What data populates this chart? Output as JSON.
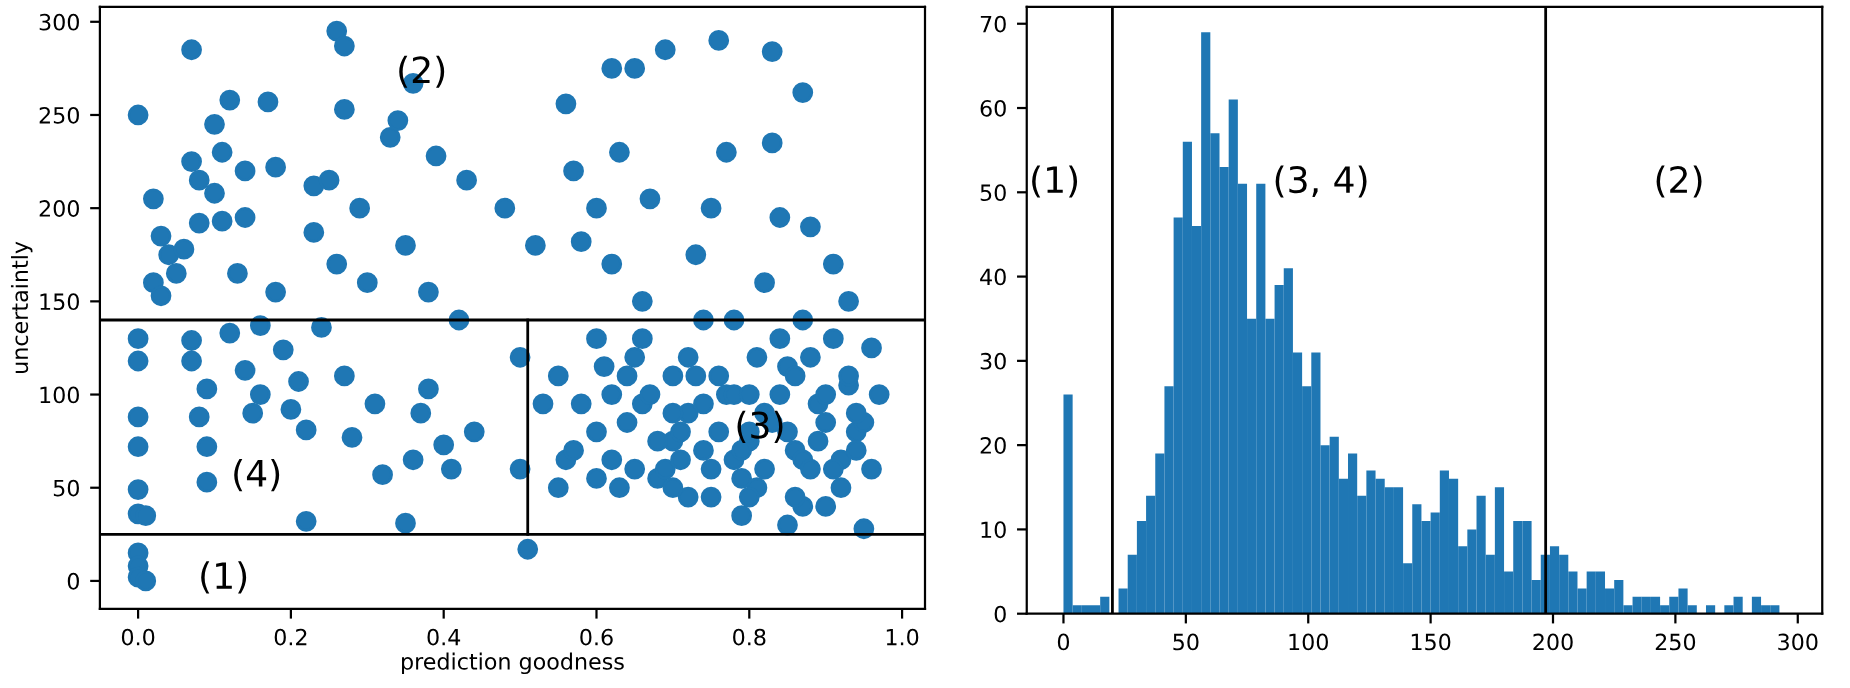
{
  "chart_data": [
    {
      "type": "scatter",
      "xlabel": "prediction goodness",
      "ylabel": "uncertaintly",
      "xlim": [
        -0.05,
        1.03
      ],
      "ylim": [
        -15,
        308
      ],
      "xticks": [
        {
          "value": 0,
          "label": "0.0"
        },
        {
          "value": 0.2,
          "label": "0.2"
        },
        {
          "value": 0.4,
          "label": "0.4"
        },
        {
          "value": 0.6,
          "label": "0.6"
        },
        {
          "value": 0.8,
          "label": "0.8"
        },
        {
          "value": 1,
          "label": "1.0"
        }
      ],
      "yticks": [
        0,
        50,
        100,
        150,
        200,
        250,
        300
      ],
      "grid": false,
      "legend": false,
      "series": [
        {
          "type": "scatter",
          "color": "#1f77b4",
          "marker": "circle",
          "x": [
            0.6,
            0.62,
            0.64,
            0.66,
            0.68,
            0.7,
            0.72,
            0.74,
            0.76,
            0.78,
            0.8,
            0.82,
            0.84,
            0.86,
            0.88,
            0.9,
            0.92,
            0.94,
            0.61,
            0.63,
            0.67,
            0.69,
            0.71,
            0.73,
            0.75,
            0.77,
            0.79,
            0.81,
            0.83,
            0.85,
            0.87,
            0.89,
            0.91,
            0.93,
            0.95,
            0.58,
            0.56,
            0.65,
            0.79,
            0.87,
            0,
            0,
            0,
            0,
            0,
            0,
            0,
            0.01,
            0,
            0,
            0,
            0.01,
            0.07,
            0.02,
            0.02,
            0.03,
            0.03,
            0.04,
            0.05,
            0.06,
            0.07,
            0.08,
            0.08,
            0.07,
            0.07,
            0.08,
            0.09,
            0.09,
            0.09,
            0.1,
            0.1,
            0.11,
            0.11,
            0.12,
            0.12,
            0.13,
            0.14,
            0.14,
            0.14,
            0.15,
            0.16,
            0.16,
            0.17,
            0.18,
            0.18,
            0.19,
            0.2,
            0.21,
            0.22,
            0.22,
            0.23,
            0.23,
            0.24,
            0.25,
            0.26,
            0.27,
            0.27,
            0.26,
            0.27,
            0.28,
            0.29,
            0.3,
            0.31,
            0.32,
            0.33,
            0.34,
            0.35,
            0.35,
            0.36,
            0.36,
            0.37,
            0.38,
            0.38,
            0.39,
            0.4,
            0.41,
            0.42,
            0.43,
            0.44,
            0.48,
            0.5,
            0.5,
            0.51,
            0.52,
            0.53,
            0.55,
            0.56,
            0.57,
            0.58,
            0.6,
            0.6,
            0.62,
            0.62,
            0.63,
            0.64,
            0.65,
            0.66,
            0.67,
            0.69,
            0.7,
            0.71,
            0.72,
            0.73,
            0.74,
            0.75,
            0.76,
            0.77,
            0.78,
            0.79,
            0.8,
            0.81,
            0.82,
            0.83,
            0.83,
            0.84,
            0.85,
            0.86,
            0.87,
            0.87,
            0.88,
            0.9,
            0.91,
            0.93,
            0.94,
            0.95,
            0.96,
            0.96,
            0.97,
            0.85,
            0.88,
            0.9,
            0.92,
            0.75,
            0.7,
            0.65,
            0.6,
            0.57,
            0.8,
            0.78,
            0.72,
            0.66,
            0.94,
            0.82,
            0.76,
            0.68,
            0.62,
            0.55,
            0.91,
            0.86,
            0.8,
            0.74,
            0.7,
            0.84,
            0.89,
            0.93
          ],
          "values": [
            55,
            65,
            85,
            95,
            55,
            75,
            90,
            70,
            110,
            65,
            75,
            90,
            100,
            70,
            120,
            85,
            65,
            80,
            115,
            50,
            100,
            60,
            80,
            110,
            45,
            100,
            70,
            50,
            85,
            115,
            65,
            95,
            60,
            105,
            85,
            95,
            65,
            120,
            35,
            40,
            250,
            130,
            118,
            88,
            72,
            49,
            36,
            35,
            15,
            8,
            2,
            0,
            285,
            205,
            160,
            153,
            185,
            175,
            165,
            178,
            225,
            215,
            192,
            129,
            118,
            88,
            72,
            53,
            103,
            245,
            208,
            230,
            193,
            258,
            133,
            165,
            220,
            195,
            113,
            90,
            137,
            100,
            257,
            222,
            155,
            124,
            92,
            107,
            32,
            81,
            187,
            212,
            136,
            215,
            295,
            287,
            253,
            170,
            110,
            77,
            200,
            160,
            95,
            57,
            238,
            247,
            180,
            31,
            267,
            65,
            90,
            155,
            103,
            228,
            73,
            60,
            140,
            215,
            80,
            200,
            120,
            60,
            17,
            180,
            95,
            50,
            256,
            220,
            182,
            200,
            130,
            275,
            170,
            230,
            110,
            275,
            150,
            205,
            285,
            90,
            65,
            45,
            175,
            140,
            200,
            290,
            230,
            100,
            55,
            80,
            120,
            160,
            284,
            235,
            195,
            30,
            45,
            140,
            262,
            190,
            100,
            170,
            150,
            70,
            28,
            60,
            125,
            100,
            80,
            60,
            40,
            50,
            60,
            110,
            60,
            80,
            70,
            45,
            140,
            120,
            130,
            90,
            60,
            80,
            75,
            100,
            110,
            130,
            110,
            100,
            95,
            50,
            130,
            75,
            110
          ]
        },
        {
          "type": "line",
          "color": "#000000",
          "marker": "none",
          "x": [
            0.51,
            0.51
          ],
          "values": [
            25,
            140
          ]
        }
      ],
      "ref_lines": [
        {
          "axis": "y",
          "value": 140,
          "color": "#000000"
        },
        {
          "axis": "y",
          "value": 25,
          "color": "#000000"
        }
      ],
      "annotations": [
        "(1)",
        "(2)",
        "(3)",
        "(4)"
      ]
    },
    {
      "type": "histogram",
      "color": "#1f77b4",
      "xlim": [
        -15,
        310
      ],
      "ylim": [
        0,
        72
      ],
      "xticks": [
        0,
        50,
        100,
        150,
        200,
        250,
        300
      ],
      "yticks": [
        0,
        10,
        20,
        30,
        40,
        50,
        60,
        70
      ],
      "grid": false,
      "legend": false,
      "bins": [
        0,
        3.75,
        7.5,
        11.25,
        15,
        18.75,
        22.5,
        26.25,
        30,
        33.75,
        37.5,
        41.25,
        45,
        48.75,
        52.5,
        56.25,
        60,
        63.75,
        67.5,
        71.25,
        75,
        78.75,
        82.5,
        86.25,
        90,
        93.75,
        97.5,
        101.25,
        105,
        108.75,
        112.5,
        116.25,
        120,
        123.75,
        127.5,
        131.25,
        135,
        138.75,
        142.5,
        146.25,
        150,
        153.75,
        157.5,
        161.25,
        165,
        168.75,
        172.5,
        176.25,
        180,
        183.75,
        187.5,
        191.25,
        195,
        198.75,
        202.5,
        206.25,
        210,
        213.75,
        217.5,
        221.25,
        225,
        228.75,
        232.5,
        236.25,
        240,
        243.75,
        247.5,
        251.25,
        255,
        258.75,
        262.5,
        266.25,
        270,
        273.75,
        277.5,
        281.25,
        285,
        288.75,
        292.5
      ],
      "values": [
        26,
        1,
        1,
        1,
        2,
        0,
        3,
        7,
        11,
        14,
        19,
        27,
        47,
        56,
        46,
        69,
        57,
        53,
        61,
        51,
        35,
        51,
        35,
        39,
        41,
        31,
        27,
        31,
        20,
        21,
        16,
        19,
        14,
        17,
        16,
        15,
        15,
        6,
        13,
        11,
        12,
        17,
        16,
        8,
        10,
        14,
        7,
        15,
        5,
        11,
        11,
        4,
        7,
        8,
        7,
        5,
        3,
        5,
        5,
        3,
        4,
        1,
        2,
        2,
        2,
        1,
        2,
        3,
        1,
        0,
        1,
        0,
        1,
        2,
        0,
        2,
        1,
        1
      ],
      "ref_lines": [
        {
          "axis": "x",
          "value": 20,
          "color": "#000000"
        },
        {
          "axis": "x",
          "value": 197,
          "color": "#000000"
        }
      ],
      "annotations": [
        "(1)",
        "(3, 4)",
        "(2)"
      ]
    }
  ]
}
